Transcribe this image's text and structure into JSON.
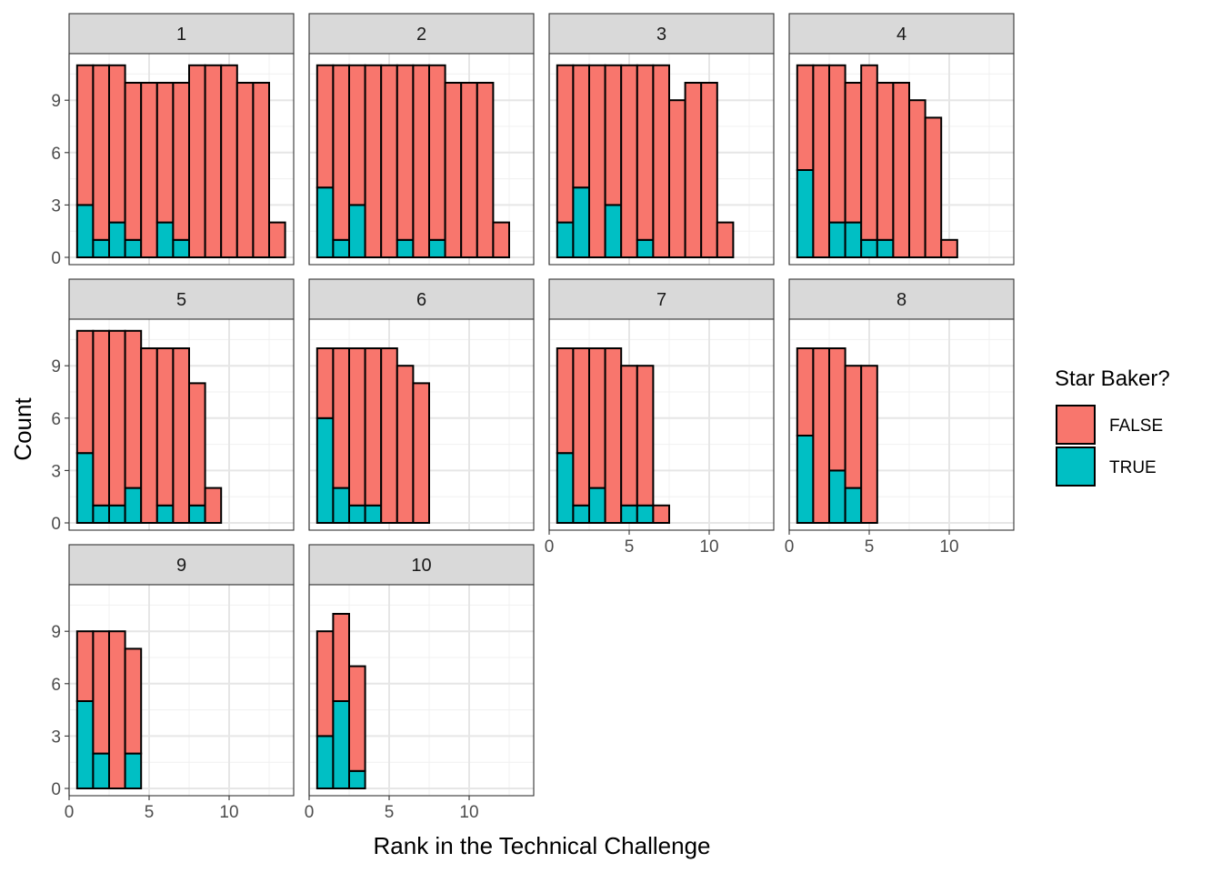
{
  "chart_data": {
    "type": "bar",
    "stacked": true,
    "faceted": true,
    "xlabel": "Rank in the Technical Challenge",
    "ylabel": "Count",
    "xlim": [
      0,
      13.5
    ],
    "ylim": [
      0,
      11
    ],
    "x_ticks": [
      0,
      5,
      10
    ],
    "y_ticks": [
      0,
      3,
      6,
      9
    ],
    "grid": true,
    "legend": {
      "title": "Star Baker?",
      "position": "right",
      "entries": [
        {
          "label": "FALSE",
          "color": "#F8766D"
        },
        {
          "label": "TRUE",
          "color": "#00BFC4"
        }
      ]
    },
    "series_colors": {
      "FALSE": "#F8766D",
      "TRUE": "#00BFC4"
    },
    "facets": [
      {
        "label": "1",
        "ranks": [
          1,
          2,
          3,
          4,
          5,
          6,
          7,
          8,
          9,
          10,
          11,
          12,
          13
        ],
        "total": [
          11,
          11,
          11,
          10,
          10,
          10,
          10,
          11,
          11,
          11,
          10,
          10,
          2
        ],
        "true": [
          3,
          1,
          2,
          1,
          0,
          2,
          1,
          0,
          0,
          0,
          0,
          0,
          0
        ]
      },
      {
        "label": "2",
        "ranks": [
          1,
          2,
          3,
          4,
          5,
          6,
          7,
          8,
          9,
          10,
          11,
          12
        ],
        "total": [
          11,
          11,
          11,
          11,
          11,
          11,
          11,
          11,
          10,
          10,
          10,
          2
        ],
        "true": [
          4,
          1,
          3,
          0,
          0,
          1,
          0,
          1,
          0,
          0,
          0,
          0
        ]
      },
      {
        "label": "3",
        "ranks": [
          1,
          2,
          3,
          4,
          5,
          6,
          7,
          8,
          9,
          10,
          11
        ],
        "total": [
          11,
          11,
          11,
          11,
          11,
          11,
          11,
          9,
          10,
          10,
          2
        ],
        "true": [
          2,
          4,
          0,
          3,
          0,
          1,
          0,
          0,
          0,
          0,
          0
        ]
      },
      {
        "label": "4",
        "ranks": [
          1,
          2,
          3,
          4,
          5,
          6,
          7,
          8,
          9,
          10
        ],
        "total": [
          11,
          11,
          11,
          10,
          11,
          10,
          10,
          9,
          8,
          1
        ],
        "true": [
          5,
          0,
          2,
          2,
          1,
          1,
          0,
          0,
          0,
          0
        ]
      },
      {
        "label": "5",
        "ranks": [
          1,
          2,
          3,
          4,
          5,
          6,
          7,
          8,
          9
        ],
        "total": [
          11,
          11,
          11,
          11,
          10,
          10,
          10,
          8,
          2
        ],
        "true": [
          4,
          1,
          1,
          2,
          0,
          1,
          0,
          1,
          0
        ]
      },
      {
        "label": "6",
        "ranks": [
          1,
          2,
          3,
          4,
          5,
          6,
          7
        ],
        "total": [
          10,
          10,
          10,
          10,
          10,
          9,
          8
        ],
        "true": [
          6,
          2,
          1,
          1,
          0,
          0,
          0
        ]
      },
      {
        "label": "7",
        "ranks": [
          1,
          2,
          3,
          4,
          5,
          6,
          7
        ],
        "total": [
          10,
          10,
          10,
          10,
          9,
          9,
          1
        ],
        "true": [
          4,
          1,
          2,
          0,
          1,
          1,
          0
        ]
      },
      {
        "label": "8",
        "ranks": [
          1,
          2,
          3,
          4,
          5
        ],
        "total": [
          10,
          10,
          10,
          9,
          9
        ],
        "true": [
          5,
          0,
          3,
          2,
          0
        ]
      },
      {
        "label": "9",
        "ranks": [
          1,
          2,
          3,
          4
        ],
        "total": [
          9,
          9,
          9,
          8
        ],
        "true": [
          5,
          2,
          0,
          2
        ]
      },
      {
        "label": "10",
        "ranks": [
          1,
          2,
          3
        ],
        "total": [
          9,
          10,
          7
        ],
        "true": [
          3,
          5,
          1
        ]
      }
    ]
  }
}
